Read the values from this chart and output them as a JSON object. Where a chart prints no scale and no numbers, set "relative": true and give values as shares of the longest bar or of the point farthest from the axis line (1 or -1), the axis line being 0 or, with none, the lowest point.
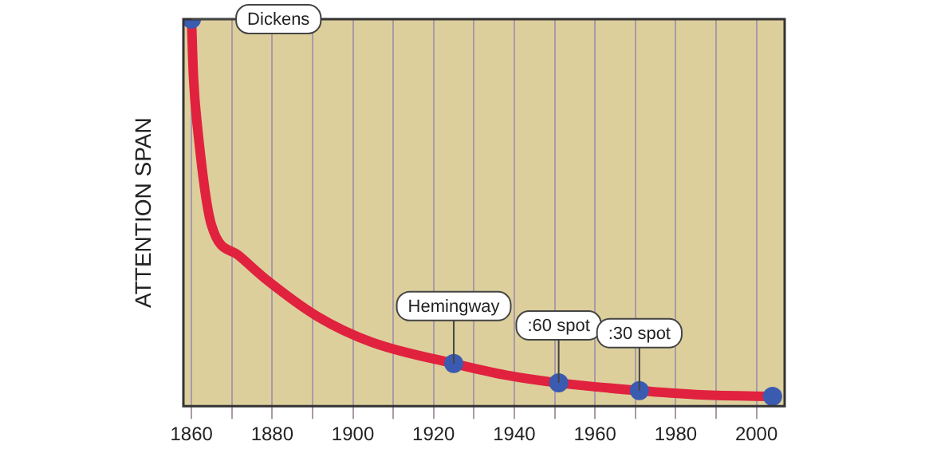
{
  "chart_data": {
    "type": "line",
    "ylabel": "ATTENTION SPAN",
    "relative": true,
    "grid": "x",
    "legend": false,
    "xlim": [
      1858,
      2007
    ],
    "xticks": [
      1860,
      {
        "value": 1870,
        "label": null
      },
      1880,
      {
        "value": 1890,
        "label": null
      },
      1900,
      {
        "value": 1910,
        "label": null
      },
      1920,
      {
        "value": 1930,
        "label": null
      },
      1940,
      {
        "value": 1950,
        "label": null
      },
      1960,
      {
        "value": 1970,
        "label": null
      },
      1980,
      {
        "value": 1990,
        "label": null
      },
      2000
    ],
    "series": [
      {
        "color": "#e0223f",
        "marker": "none",
        "x": [
          1860,
          1860.5,
          1861.5,
          1864.9,
          1871.6,
          1878.2,
          1891.5,
          1904.7,
          1925,
          1938,
          1951,
          1971,
          1985,
          2004
        ],
        "values": [
          1,
          0.85,
          0.72,
          0.47,
          0.39,
          0.33,
          0.23,
          0.165,
          0.11,
          0.08,
          0.06,
          0.04,
          0.03,
          0.025
        ]
      },
      {
        "type": "scatter",
        "color": "#3b5bb0",
        "marker": "circle",
        "x": [
          1860,
          1925,
          1951,
          1971,
          2004
        ],
        "values": [
          1,
          0.11,
          0.06,
          0.04,
          0.025
        ]
      }
    ],
    "annotations": [
      {
        "text": "Dickens",
        "x": 1860,
        "y": 1
      },
      {
        "text": "Hemingway",
        "x": 1925,
        "y": 0.11
      },
      {
        "text": ":60 spot",
        "x": 1951,
        "y": 0.06
      },
      {
        "text": ":30 spot",
        "x": 1971,
        "y": 0.04
      }
    ]
  }
}
